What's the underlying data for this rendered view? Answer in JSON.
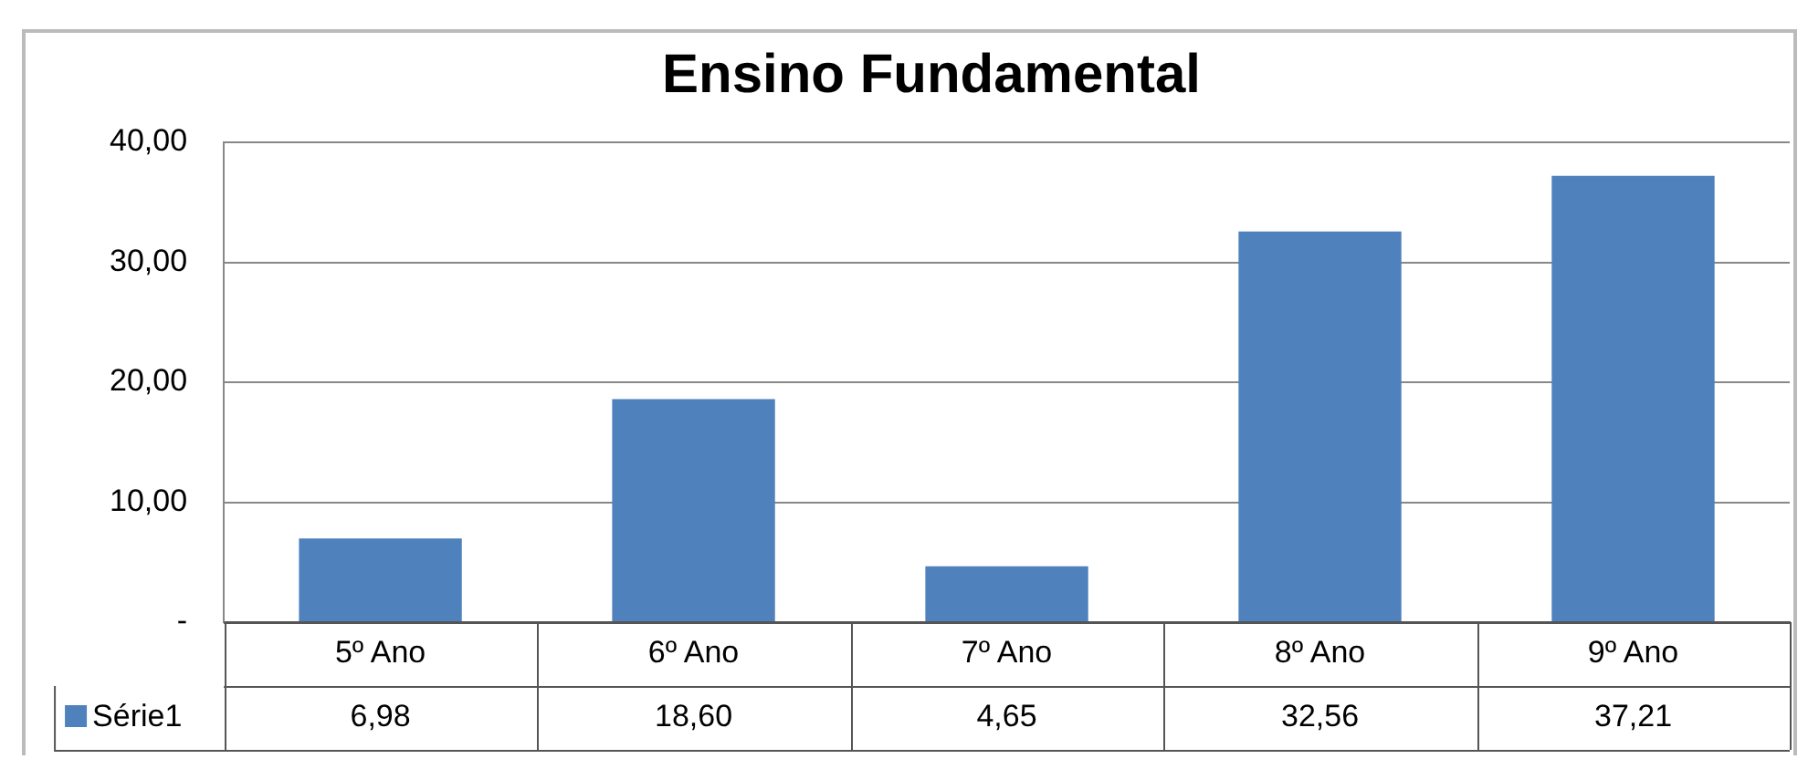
{
  "chart_data": {
    "type": "bar",
    "title": "Ensino Fundamental",
    "categories": [
      "5º Ano",
      "6º Ano",
      "7º Ano",
      "8º Ano",
      "9º Ano"
    ],
    "series": [
      {
        "name": "Série1",
        "color": "#4f81bd",
        "values": [
          6.98,
          18.6,
          4.65,
          32.56,
          37.21
        ],
        "value_labels": [
          "6,98",
          "18,60",
          "4,65",
          "32,56",
          "37,21"
        ]
      }
    ],
    "ylim": [
      0,
      40
    ],
    "yticks": [
      {
        "value": 0,
        "label": "-"
      },
      {
        "value": 10,
        "label": "10,00"
      },
      {
        "value": 20,
        "label": "20,00"
      },
      {
        "value": 30,
        "label": "30,00"
      },
      {
        "value": 40,
        "label": "40,00"
      }
    ],
    "grid": "y",
    "legend": "bottom"
  }
}
